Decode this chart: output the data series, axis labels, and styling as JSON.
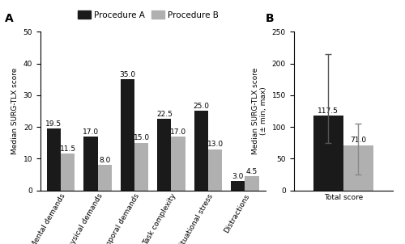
{
  "panel_A": {
    "categories": [
      "Mental demands",
      "Physical demands",
      "Temporal demands",
      "Task complexity",
      "Situational stress",
      "Distractions"
    ],
    "proc_A_values": [
      19.5,
      17.0,
      35.0,
      22.5,
      25.0,
      3.0
    ],
    "proc_B_values": [
      11.5,
      8.0,
      15.0,
      17.0,
      13.0,
      4.5
    ],
    "ylabel": "Median SURG-TLX score",
    "ylim": [
      0,
      50
    ],
    "yticks": [
      0,
      10,
      20,
      30,
      40,
      50
    ],
    "bar_width": 0.38,
    "color_A": "#1a1a1a",
    "color_B": "#b0b0b0",
    "label_A": "Procedure A",
    "label_B": "Procedure B",
    "panel_label": "A"
  },
  "panel_B": {
    "categories": [
      "Total score"
    ],
    "proc_A_value": 117.5,
    "proc_B_value": 71.0,
    "proc_A_err_lo": 42.5,
    "proc_A_err_hi": 97.5,
    "proc_B_err_lo": 46.0,
    "proc_B_err_hi": 34.0,
    "ylabel": "Median SURG-TLX score\n(± min, max)",
    "ylim": [
      0,
      250
    ],
    "yticks": [
      0,
      50,
      100,
      150,
      200,
      250
    ],
    "bar_width": 0.3,
    "color_A": "#1a1a1a",
    "color_B": "#b0b0b0",
    "panel_label": "B"
  },
  "background_color": "#ffffff",
  "font_size_label": 6.5,
  "font_size_tick": 6.5,
  "font_size_value": 6.5,
  "font_size_legend": 7.5,
  "font_size_panel": 10
}
